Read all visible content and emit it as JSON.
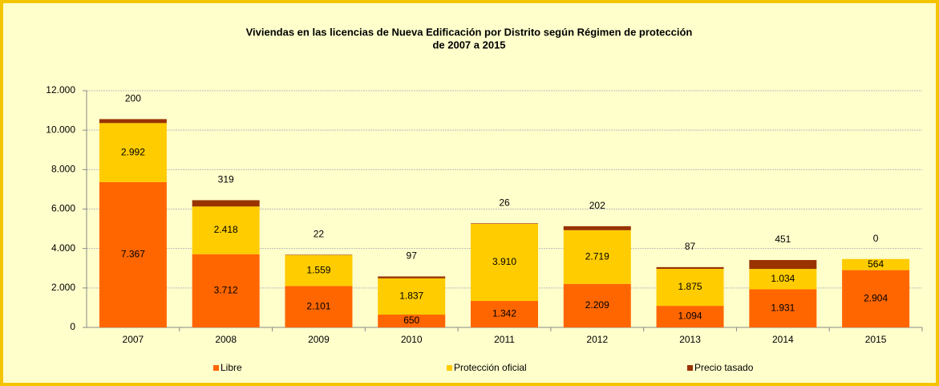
{
  "chart_data": {
    "type": "stacked_bar",
    "title": "Viviendas en las licencias de Nueva Edificación por Distrito según Régimen de protección",
    "subtitle": "de 2007 a 2015",
    "categories": [
      "2007",
      "2008",
      "2009",
      "2010",
      "2011",
      "2012",
      "2013",
      "2014",
      "2015"
    ],
    "series": [
      {
        "name": "Libre",
        "color": "#ff6600",
        "values": [
          7367,
          3712,
          2101,
          650,
          1342,
          2209,
          1094,
          1931,
          2904
        ],
        "value_labels": [
          "7.367",
          "3.712",
          "2.101",
          "650",
          "1.342",
          "2.209",
          "1.094",
          "1.931",
          "2.904"
        ]
      },
      {
        "name": "Protección oficial",
        "color": "#ffcc00",
        "values": [
          2992,
          2418,
          1559,
          1837,
          3910,
          2719,
          1875,
          1034,
          564
        ],
        "value_labels": [
          "2.992",
          "2.418",
          "1.559",
          "1.837",
          "3.910",
          "2.719",
          "1.875",
          "1.034",
          "564"
        ]
      },
      {
        "name": "Precio tasado",
        "color": "#993300",
        "values": [
          200,
          319,
          22,
          97,
          26,
          202,
          87,
          451,
          0
        ]
      }
    ],
    "ylim": [
      0,
      12000
    ],
    "yticks": [
      0,
      {
        "value": 2000,
        "label": "2.000"
      },
      {
        "value": 4000,
        "label": "4.000"
      },
      {
        "value": 6000,
        "label": "6.000"
      },
      {
        "value": 8000,
        "label": "8.000"
      },
      {
        "value": 10000,
        "label": "10.000"
      },
      {
        "value": 12000,
        "label": "12.000"
      }
    ],
    "grid": true,
    "legend": "bottom"
  }
}
